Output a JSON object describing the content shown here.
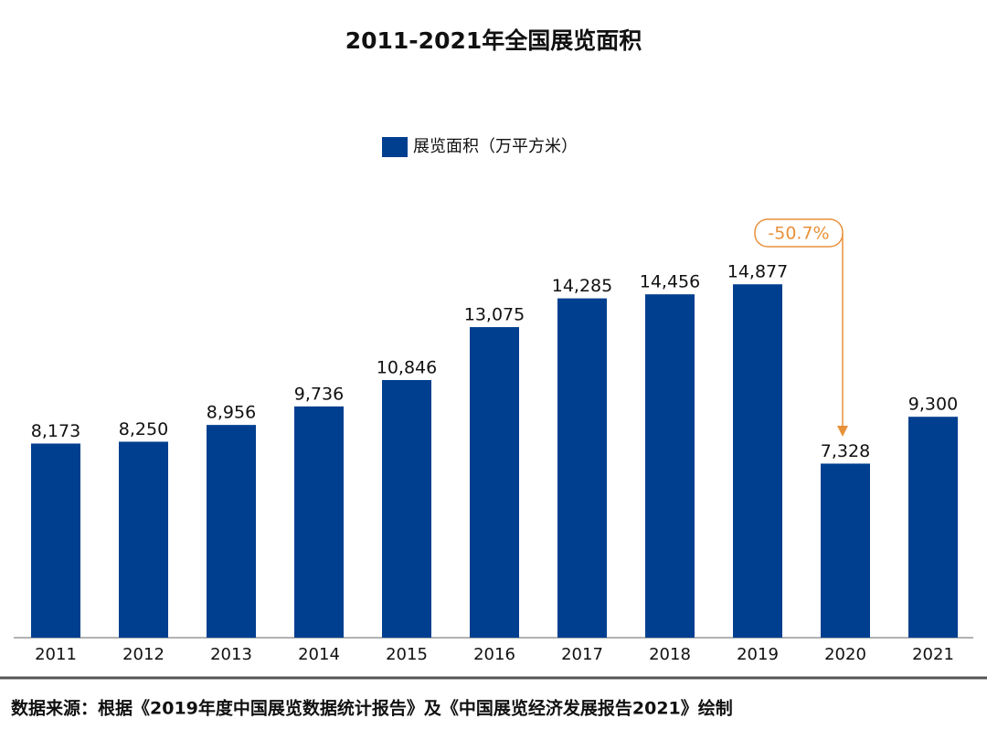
{
  "chart_data": {
    "type": "bar",
    "title": "2011-2021年全国展览面积",
    "categories": [
      "2011",
      "2012",
      "2013",
      "2014",
      "2015",
      "2016",
      "2017",
      "2018",
      "2019",
      "2020",
      "2021"
    ],
    "series": [
      {
        "name": "展览面积（万平方米）",
        "color": "#003f8f",
        "values": [
          8173,
          8250,
          8956,
          9736,
          10846,
          13075,
          14285,
          14456,
          14877,
          7328,
          9300
        ],
        "value_labels": [
          "8,173",
          "8,250",
          "8,956",
          "9,736",
          "10,846",
          "13,075",
          "14,285",
          "14,456",
          "14,877",
          "7,328",
          "9,300"
        ]
      }
    ],
    "ylim": [
      0,
      20000
    ],
    "annotation": "-50.7%",
    "source": "数据来源：根据《2019年度中国展览数据统计报告》及《中国展览经济发展报告2021》绘制"
  }
}
